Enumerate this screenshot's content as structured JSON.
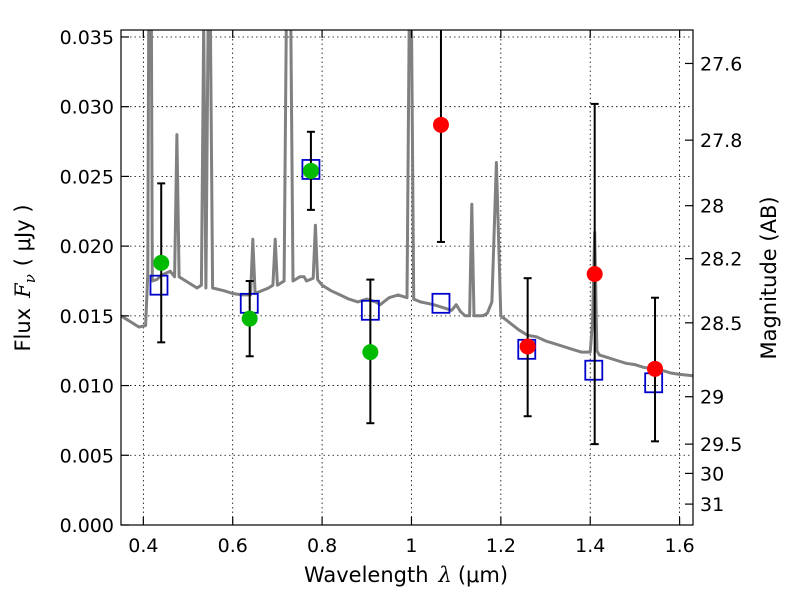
{
  "chart_data": {
    "type": "scatter",
    "xlabel_prefix": "Wavelength",
    "xlabel_lambda": "λ",
    "xlabel_unit": "(μm)",
    "ylabel_prefix": "Flux",
    "ylabel_symbol": "F",
    "ylabel_sub": "ν",
    "ylabel_unit": "( μJy )",
    "y2label": "Magnitude (AB)",
    "xlim": [
      0.35,
      1.63
    ],
    "ylim": [
      0.0,
      0.0355
    ],
    "grid": true,
    "x_ticks": [
      {
        "value": 0.4,
        "label": "0.4"
      },
      {
        "value": 0.6,
        "label": "0.6"
      },
      {
        "value": 0.8,
        "label": "0.8"
      },
      {
        "value": 1.0,
        "label": "1"
      },
      {
        "value": 1.2,
        "label": "1.2"
      },
      {
        "value": 1.4,
        "label": "1.4"
      },
      {
        "value": 1.6,
        "label": "1.6"
      }
    ],
    "y_ticks": [
      {
        "value": 0.0,
        "label": "0.000"
      },
      {
        "value": 0.005,
        "label": "0.005"
      },
      {
        "value": 0.01,
        "label": "0.010"
      },
      {
        "value": 0.015,
        "label": "0.015"
      },
      {
        "value": 0.02,
        "label": "0.020"
      },
      {
        "value": 0.025,
        "label": "0.025"
      },
      {
        "value": 0.03,
        "label": "0.030"
      },
      {
        "value": 0.035,
        "label": "0.035"
      }
    ],
    "y2_ticks": [
      {
        "flux": 0.0331,
        "label": "27.6"
      },
      {
        "flux": 0.0276,
        "label": "27.8"
      },
      {
        "flux": 0.0229,
        "label": "28"
      },
      {
        "flux": 0.0191,
        "label": "28.2"
      },
      {
        "flux": 0.0145,
        "label": "28.5"
      },
      {
        "flux": 0.0092,
        "label": "29"
      },
      {
        "flux": 0.0058,
        "label": "29.5"
      },
      {
        "flux": 0.0037,
        "label": "30"
      },
      {
        "flux": 0.0015,
        "label": "31"
      }
    ],
    "colors": {
      "spectrum": "#808080",
      "model": "#0000cc",
      "green": "#00bb00",
      "red": "#ff0000",
      "errorbar": "#000000"
    },
    "spectrum": [
      [
        0.35,
        0.015
      ],
      [
        0.37,
        0.0146
      ],
      [
        0.39,
        0.0142
      ],
      [
        0.405,
        0.0143
      ],
      [
        0.41,
        0.018
      ],
      [
        0.412,
        0.036
      ],
      [
        0.418,
        0.036
      ],
      [
        0.42,
        0.0175
      ],
      [
        0.43,
        0.0176
      ],
      [
        0.44,
        0.0179
      ],
      [
        0.46,
        0.0182
      ],
      [
        0.47,
        0.0178
      ],
      [
        0.475,
        0.028
      ],
      [
        0.48,
        0.0178
      ],
      [
        0.5,
        0.0174
      ],
      [
        0.52,
        0.017
      ],
      [
        0.53,
        0.0172
      ],
      [
        0.535,
        0.036
      ],
      [
        0.54,
        0.017
      ],
      [
        0.545,
        0.036
      ],
      [
        0.55,
        0.036
      ],
      [
        0.555,
        0.017
      ],
      [
        0.58,
        0.0168
      ],
      [
        0.6,
        0.0166
      ],
      [
        0.62,
        0.0165
      ],
      [
        0.64,
        0.0165
      ],
      [
        0.645,
        0.0205
      ],
      [
        0.65,
        0.0166
      ],
      [
        0.68,
        0.017
      ],
      [
        0.69,
        0.0172
      ],
      [
        0.695,
        0.0205
      ],
      [
        0.7,
        0.0172
      ],
      [
        0.715,
        0.0175
      ],
      [
        0.72,
        0.036
      ],
      [
        0.73,
        0.036
      ],
      [
        0.735,
        0.0175
      ],
      [
        0.75,
        0.0178
      ],
      [
        0.76,
        0.0178
      ],
      [
        0.765,
        0.0175
      ],
      [
        0.78,
        0.0177
      ],
      [
        0.785,
        0.0215
      ],
      [
        0.79,
        0.0176
      ],
      [
        0.8,
        0.0172
      ],
      [
        0.82,
        0.0168
      ],
      [
        0.84,
        0.0165
      ],
      [
        0.86,
        0.0162
      ],
      [
        0.88,
        0.016
      ],
      [
        0.9,
        0.0162
      ],
      [
        0.92,
        0.016
      ],
      [
        0.93,
        0.0158
      ],
      [
        0.95,
        0.0163
      ],
      [
        0.97,
        0.0165
      ],
      [
        0.99,
        0.0163
      ],
      [
        0.995,
        0.036
      ],
      [
        1.0,
        0.036
      ],
      [
        1.005,
        0.0162
      ],
      [
        1.02,
        0.016
      ],
      [
        1.05,
        0.0158
      ],
      [
        1.08,
        0.0155
      ],
      [
        1.09,
        0.0154
      ],
      [
        1.1,
        0.0158
      ],
      [
        1.11,
        0.0153
      ],
      [
        1.12,
        0.015
      ],
      [
        1.13,
        0.015
      ],
      [
        1.135,
        0.023
      ],
      [
        1.14,
        0.015
      ],
      [
        1.16,
        0.015
      ],
      [
        1.17,
        0.0152
      ],
      [
        1.18,
        0.016
      ],
      [
        1.19,
        0.026
      ],
      [
        1.2,
        0.015
      ],
      [
        1.22,
        0.0145
      ],
      [
        1.24,
        0.014
      ],
      [
        1.26,
        0.0136
      ],
      [
        1.28,
        0.0135
      ],
      [
        1.3,
        0.0132
      ],
      [
        1.32,
        0.013
      ],
      [
        1.34,
        0.0128
      ],
      [
        1.36,
        0.0126
      ],
      [
        1.38,
        0.0124
      ],
      [
        1.4,
        0.0124
      ],
      [
        1.405,
        0.0145
      ],
      [
        1.41,
        0.021
      ],
      [
        1.415,
        0.0125
      ],
      [
        1.42,
        0.0122
      ],
      [
        1.44,
        0.012
      ],
      [
        1.46,
        0.0118
      ],
      [
        1.48,
        0.0116
      ],
      [
        1.5,
        0.0115
      ],
      [
        1.52,
        0.0113
      ],
      [
        1.54,
        0.0112
      ],
      [
        1.56,
        0.0111
      ],
      [
        1.58,
        0.0109
      ],
      [
        1.6,
        0.0108
      ],
      [
        1.63,
        0.0107
      ]
    ],
    "model_points": [
      {
        "x": 0.435,
        "y": 0.0172
      },
      {
        "x": 0.637,
        "y": 0.0159
      },
      {
        "x": 0.775,
        "y": 0.0255
      },
      {
        "x": 0.908,
        "y": 0.0154
      },
      {
        "x": 1.066,
        "y": 0.0159
      },
      {
        "x": 1.258,
        "y": 0.0126
      },
      {
        "x": 1.408,
        "y": 0.0111
      },
      {
        "x": 1.542,
        "y": 0.0102
      }
    ],
    "green_points": [
      {
        "x": 0.44,
        "y": 0.0188,
        "err_low": 0.0131,
        "err_high": 0.0245
      },
      {
        "x": 0.638,
        "y": 0.0148,
        "err_low": 0.0121,
        "err_high": 0.0175
      },
      {
        "x": 0.775,
        "y": 0.0254,
        "err_low": 0.0226,
        "err_high": 0.0282
      },
      {
        "x": 0.908,
        "y": 0.0124,
        "err_low": 0.0073,
        "err_high": 0.0176
      }
    ],
    "red_points": [
      {
        "x": 1.066,
        "y": 0.0287,
        "err_low": 0.0203,
        "err_high": 0.036
      },
      {
        "x": 1.26,
        "y": 0.0128,
        "err_low": 0.0078,
        "err_high": 0.0177
      },
      {
        "x": 1.41,
        "y": 0.018,
        "err_low": 0.0058,
        "err_high": 0.0302
      },
      {
        "x": 1.545,
        "y": 0.0112,
        "err_low": 0.006,
        "err_high": 0.0163
      }
    ]
  }
}
